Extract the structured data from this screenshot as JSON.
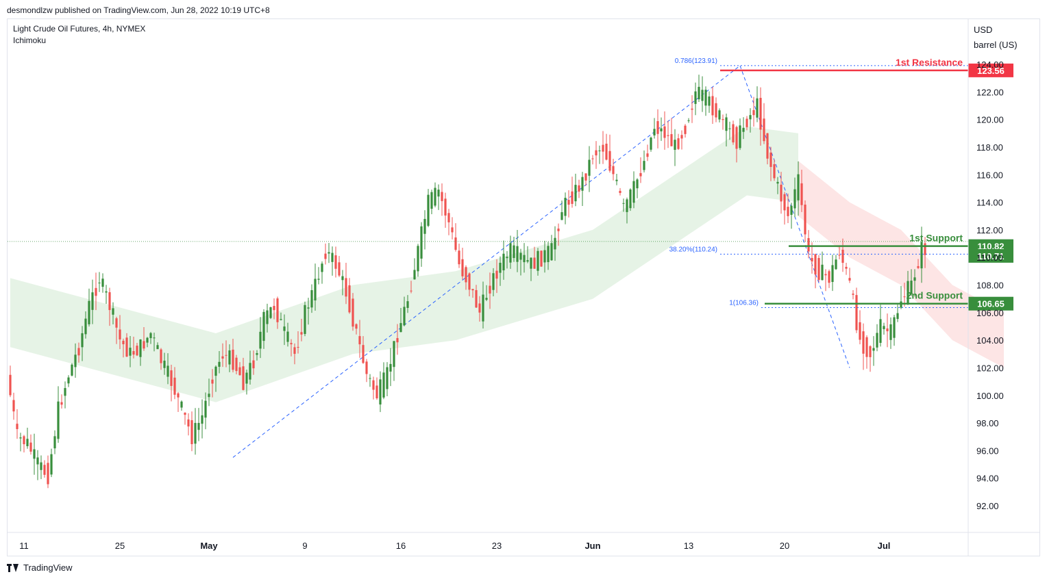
{
  "header": {
    "publisher_text": "desmondlzw published on TradingView.com, Jun 28, 2022 10:19 UTC+8"
  },
  "legend": {
    "symbol": "Light Crude Oil Futures, 4h, NYMEX",
    "indicator": "Ichimoku"
  },
  "axis": {
    "currency": "USD",
    "unit": "barrel (US)"
  },
  "footer": {
    "brand": "TradingView"
  },
  "colors": {
    "up": "#26a69a",
    "candle_up": "#388e3c",
    "candle_down": "#ef5350",
    "resistance": "#f23645",
    "support": "#388e3c",
    "fib": "#2962ff",
    "cloud_bull": "#e6f3e6",
    "cloud_bear": "#fde5e5"
  },
  "chart_data": {
    "type": "candlestick",
    "title": "Light Crude Oil Futures, 4h, NYMEX",
    "indicator": "Ichimoku",
    "ylim": [
      90,
      125
    ],
    "y_ticks": [
      "124.00",
      "122.00",
      "120.00",
      "118.00",
      "116.00",
      "114.00",
      "112.00",
      "110.00",
      "108.00",
      "106.00",
      "104.00",
      "102.00",
      "100.00",
      "98.00",
      "96.00",
      "94.00",
      "92.00"
    ],
    "y_tick_values": [
      124,
      122,
      120,
      118,
      116,
      114,
      112,
      110,
      108,
      106,
      104,
      102,
      100,
      98,
      96,
      94,
      92
    ],
    "x_ticks": [
      "11",
      "25",
      "May",
      "9",
      "16",
      "23",
      "Jun",
      "13",
      "20",
      "Jul"
    ],
    "x_tick_bold": [
      false,
      false,
      true,
      false,
      false,
      false,
      true,
      false,
      false,
      true
    ],
    "x_tick_index": [
      4,
      32,
      58,
      86,
      114,
      142,
      170,
      198,
      226,
      255
    ],
    "total_bars": 290,
    "price_path": [
      [
        0,
        101.5
      ],
      [
        3,
        97.0
      ],
      [
        6,
        96.5
      ],
      [
        9,
        95.0
      ],
      [
        12,
        94.2
      ],
      [
        15,
        99.0
      ],
      [
        18,
        101.5
      ],
      [
        21,
        103.5
      ],
      [
        24,
        106.5
      ],
      [
        27,
        108.5
      ],
      [
        30,
        106.5
      ],
      [
        33,
        104.0
      ],
      [
        36,
        103.0
      ],
      [
        39,
        103.5
      ],
      [
        42,
        104.5
      ],
      [
        45,
        102.5
      ],
      [
        48,
        101.0
      ],
      [
        51,
        99.0
      ],
      [
        54,
        97.0
      ],
      [
        57,
        98.5
      ],
      [
        60,
        101.5
      ],
      [
        63,
        103.0
      ],
      [
        66,
        102.5
      ],
      [
        69,
        101.0
      ],
      [
        72,
        102.5
      ],
      [
        75,
        105.5
      ],
      [
        78,
        106.5
      ],
      [
        81,
        104.5
      ],
      [
        84,
        103.0
      ],
      [
        87,
        106.0
      ],
      [
        90,
        108.0
      ],
      [
        93,
        110.5
      ],
      [
        96,
        109.5
      ],
      [
        99,
        107.5
      ],
      [
        102,
        104.5
      ],
      [
        105,
        101.5
      ],
      [
        108,
        100.0
      ],
      [
        111,
        101.5
      ],
      [
        114,
        104.5
      ],
      [
        117,
        107.0
      ],
      [
        120,
        110.5
      ],
      [
        123,
        114.0
      ],
      [
        126,
        114.8
      ],
      [
        129,
        112.5
      ],
      [
        132,
        109.5
      ],
      [
        135,
        108.0
      ],
      [
        138,
        106.0
      ],
      [
        141,
        108.0
      ],
      [
        144,
        109.5
      ],
      [
        147,
        110.5
      ],
      [
        150,
        110.0
      ],
      [
        153,
        109.5
      ],
      [
        156,
        110.0
      ],
      [
        159,
        110.5
      ],
      [
        162,
        113.5
      ],
      [
        165,
        114.5
      ],
      [
        168,
        115.5
      ],
      [
        171,
        117.5
      ],
      [
        174,
        118.0
      ],
      [
        177,
        116.0
      ],
      [
        180,
        113.5
      ],
      [
        183,
        115.0
      ],
      [
        186,
        117.0
      ],
      [
        189,
        119.5
      ],
      [
        192,
        119.0
      ],
      [
        195,
        118.0
      ],
      [
        198,
        119.5
      ],
      [
        201,
        122.0
      ],
      [
        204,
        121.5
      ],
      [
        207,
        120.5
      ],
      [
        210,
        119.5
      ],
      [
        213,
        118.5
      ],
      [
        216,
        120.0
      ],
      [
        219,
        121.0
      ],
      [
        222,
        117.5
      ],
      [
        225,
        115.0
      ],
      [
        228,
        113.0
      ],
      [
        231,
        115.5
      ],
      [
        234,
        110.0
      ],
      [
        237,
        109.0
      ],
      [
        240,
        108.5
      ],
      [
        243,
        110.5
      ],
      [
        246,
        108.0
      ],
      [
        249,
        104.0
      ],
      [
        252,
        103.0
      ],
      [
        255,
        105.0
      ],
      [
        258,
        104.5
      ],
      [
        261,
        107.0
      ],
      [
        264,
        108.0
      ],
      [
        267,
        110.6
      ]
    ],
    "ichimoku_cloud_bull": [
      [
        0,
        108.5
      ],
      [
        60,
        104.5
      ],
      [
        100,
        108.0
      ],
      [
        130,
        109.0
      ],
      [
        170,
        112.0
      ],
      [
        200,
        117.0
      ],
      [
        215,
        119.5
      ],
      [
        230,
        119.0
      ]
    ],
    "ichimoku_cloud_bear": [
      [
        230,
        117.0
      ],
      [
        245,
        114.0
      ],
      [
        260,
        112.0
      ],
      [
        275,
        108.0
      ],
      [
        290,
        106.0
      ]
    ],
    "fib_annotations": [
      {
        "label": "0.786(123.91)",
        "value": 123.91
      },
      {
        "label": "38.20%(110.24)",
        "value": 110.24
      },
      {
        "label": "1(106.36)",
        "value": 106.36
      }
    ],
    "levels": [
      {
        "name": "1st Resistance",
        "value": 123.56,
        "label": "123.56",
        "color": "#f23645"
      },
      {
        "name": "1st Support",
        "value": 110.82,
        "label": "110.82",
        "color": "#388e3c"
      },
      {
        "name": "2nd Support",
        "value": 106.65,
        "label": "106.65",
        "color": "#388e3c"
      }
    ],
    "current_price": {
      "value": 110.71,
      "label": "110.71"
    },
    "trendline_up": {
      "from": [
        65,
        95.5
      ],
      "to": [
        213,
        123.9
      ]
    },
    "trendline_down": {
      "from": [
        213,
        123.9
      ],
      "to": [
        245,
        102.0
      ]
    }
  }
}
